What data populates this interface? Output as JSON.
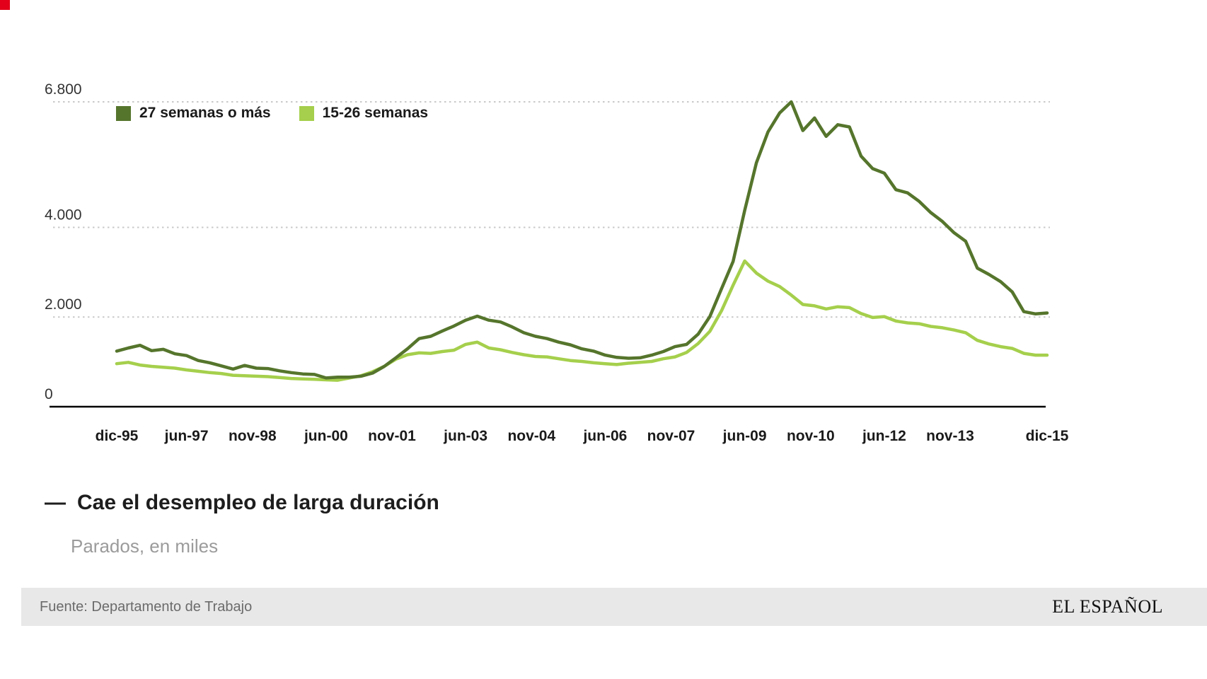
{
  "brand": {
    "red_square_color": "#e2001a"
  },
  "chart_data": {
    "type": "line",
    "title_dash": "—",
    "title": "Cae el desempleo de larga duración",
    "subtitle": "Parados, en miles",
    "grid": "horizontal-dotted",
    "legend_position": "top-left-inside",
    "x_axis": {
      "total_months": 240,
      "ticks": [
        {
          "label": "dic-95",
          "month": 0
        },
        {
          "label": "jun-97",
          "month": 18
        },
        {
          "label": "nov-98",
          "month": 35
        },
        {
          "label": "jun-00",
          "month": 54
        },
        {
          "label": "nov-01",
          "month": 71
        },
        {
          "label": "jun-03",
          "month": 90
        },
        {
          "label": "nov-04",
          "month": 107
        },
        {
          "label": "jun-06",
          "month": 126
        },
        {
          "label": "nov-07",
          "month": 143
        },
        {
          "label": "jun-09",
          "month": 162
        },
        {
          "label": "nov-10",
          "month": 179
        },
        {
          "label": "jun-12",
          "month": 198
        },
        {
          "label": "nov-13",
          "month": 215
        },
        {
          "label": "dic-15",
          "month": 240
        }
      ]
    },
    "y_axis": {
      "min": 0,
      "max": 6800,
      "gridlines": [
        {
          "label": "6.800",
          "value": 6800
        },
        {
          "label": "4.000",
          "value": 4000
        },
        {
          "label": "2.000",
          "value": 2000
        },
        {
          "label": "0",
          "value": 0
        }
      ]
    },
    "sample_interval_months": 3,
    "series": [
      {
        "id": "27-semanas-o-mas",
        "name": "27 semanas o más",
        "color": "#55752c",
        "values": [
          1240,
          1310,
          1370,
          1250,
          1280,
          1180,
          1140,
          1030,
          980,
          910,
          840,
          920,
          860,
          850,
          800,
          760,
          730,
          720,
          640,
          660,
          660,
          680,
          750,
          900,
          1090,
          1290,
          1520,
          1570,
          1690,
          1800,
          1930,
          2020,
          1930,
          1890,
          1780,
          1650,
          1570,
          1520,
          1440,
          1380,
          1290,
          1240,
          1150,
          1100,
          1080,
          1090,
          1150,
          1230,
          1340,
          1390,
          1620,
          2010,
          2630,
          3240,
          4380,
          5440,
          6130,
          6550,
          6800,
          6160,
          6440,
          6030,
          6290,
          6240,
          5590,
          5310,
          5210,
          4840,
          4770,
          4580,
          4330,
          4130,
          3880,
          3690,
          3090,
          2950,
          2790,
          2560,
          2120,
          2070,
          2090
        ]
      },
      {
        "id": "15-26-semanas",
        "name": "15-26 semanas",
        "color": "#a5cf4c",
        "values": [
          960,
          990,
          930,
          900,
          880,
          860,
          820,
          790,
          760,
          740,
          700,
          690,
          680,
          670,
          650,
          630,
          620,
          610,
          600,
          590,
          640,
          690,
          780,
          900,
          1060,
          1160,
          1200,
          1190,
          1230,
          1260,
          1390,
          1440,
          1310,
          1270,
          1210,
          1160,
          1120,
          1110,
          1070,
          1030,
          1010,
          980,
          960,
          940,
          970,
          990,
          1010,
          1070,
          1110,
          1210,
          1410,
          1680,
          2140,
          2710,
          3250,
          2980,
          2800,
          2680,
          2490,
          2280,
          2250,
          2180,
          2230,
          2210,
          2080,
          1990,
          2010,
          1910,
          1870,
          1850,
          1790,
          1760,
          1710,
          1650,
          1480,
          1400,
          1340,
          1300,
          1190,
          1150,
          1150
        ]
      }
    ]
  },
  "footer": {
    "source": "Fuente: Departamento de Trabajo",
    "logo": "EL ESPAÑOL"
  }
}
